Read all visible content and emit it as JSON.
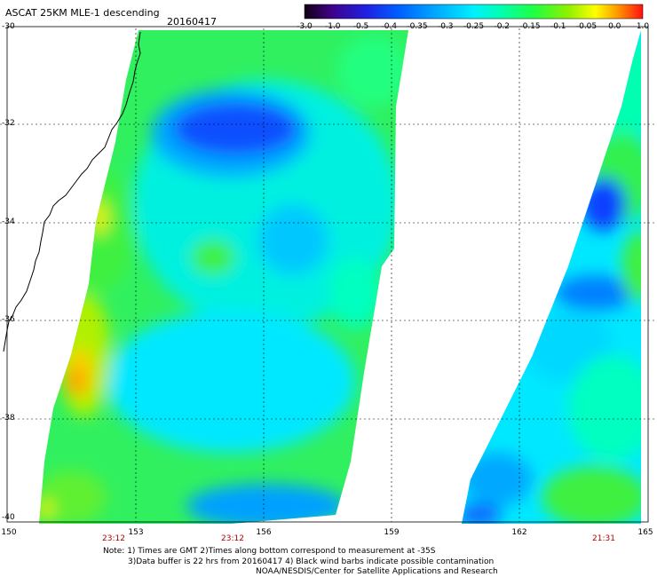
{
  "header": {
    "title": "ASCAT 25KM MLE-1 descending",
    "date": "20160417"
  },
  "colorbar": {
    "labels": [
      "-3.0",
      "-1.0",
      "-0.5",
      "-0.4",
      "-0.35",
      "-0.3",
      "-0.25",
      "-0.2",
      "-0.15",
      "-0.1",
      "-0.05",
      "0.0",
      "1.0"
    ],
    "colors": [
      "#200020",
      "#5000a0",
      "#1010e0",
      "#0050ff",
      "#0098ff",
      "#00d8ff",
      "#00ffd8",
      "#00ff80",
      "#40f040",
      "#b0f000",
      "#ffff00",
      "#ffa000",
      "#ff2000"
    ]
  },
  "map": {
    "lat_labels": [
      "-30",
      "-32",
      "-34",
      "-36",
      "-38",
      "-40"
    ],
    "lon_labels": [
      "150",
      "153",
      "156",
      "159",
      "162",
      "165"
    ],
    "time_labels": [
      "23:12",
      "23:12",
      "21:31"
    ]
  },
  "footer": {
    "note1": "Note: 1) Times are GMT 2)Times along bottom correspond to measurement at -35S",
    "note2": "3)Data buffer is 22 hrs from 20160417 4) Black wind barbs indicate possible contamination",
    "credit": "NOAA/NESDIS/Center for Satellite Applications and Research"
  }
}
